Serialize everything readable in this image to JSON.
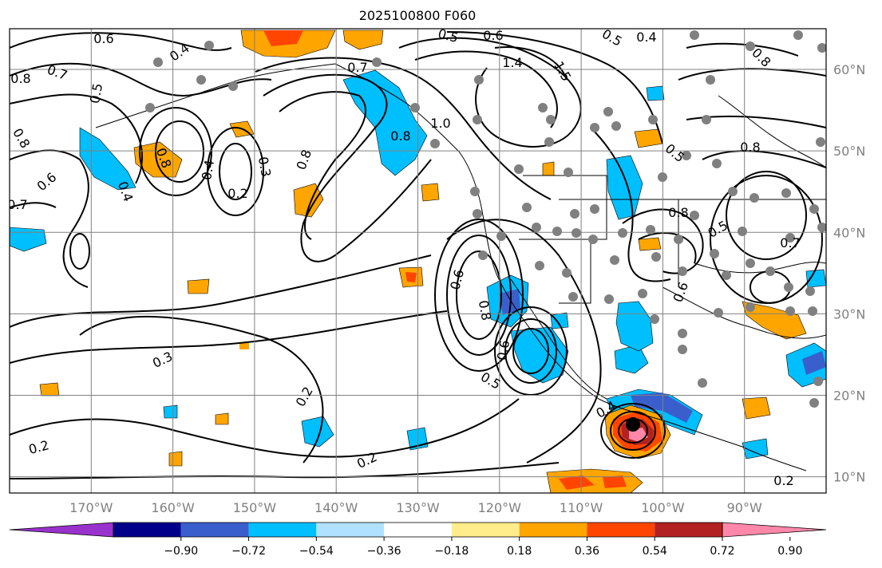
{
  "title": "2025100800 F060",
  "map": {
    "lon_range": [
      -180,
      -80
    ],
    "lat_range": [
      8,
      65
    ],
    "lon_ticks": [
      {
        "value": -170,
        "label": "170°W"
      },
      {
        "value": -160,
        "label": "160°W"
      },
      {
        "value": -150,
        "label": "150°W"
      },
      {
        "value": -140,
        "label": "140°W"
      },
      {
        "value": -130,
        "label": "130°W"
      },
      {
        "value": -120,
        "label": "120°W"
      },
      {
        "value": -110,
        "label": "110°W"
      },
      {
        "value": -100,
        "label": "100°W"
      },
      {
        "value": -90,
        "label": "90°W"
      }
    ],
    "lat_ticks": [
      {
        "value": 60,
        "label": "60°N"
      },
      {
        "value": 50,
        "label": "50°N"
      },
      {
        "value": 40,
        "label": "40°N"
      },
      {
        "value": 30,
        "label": "30°N"
      },
      {
        "value": 20,
        "label": "20°N"
      },
      {
        "value": 10,
        "label": "10°N"
      }
    ],
    "contour_labels": [
      "0.6",
      "0.4",
      "0.8",
      "0.7",
      "0.5",
      "0.5",
      "0.6",
      "1.4",
      "1.5",
      "0.5",
      "0.4",
      "0.8",
      "0.7",
      "0.6",
      "0.8",
      "0.4",
      "0.2",
      "0.3",
      "0.8",
      "1.0",
      "0.8",
      "0.4",
      "0.6",
      "0.8",
      "0.5",
      "0.8",
      "0.7",
      "0.3",
      "0.6",
      "0.8",
      "0.6",
      "0.5",
      "0.2",
      "0.4",
      "0.2",
      "0.2",
      "0.2",
      "0.7",
      "0.8",
      "0.5"
    ],
    "storm_marker": {
      "lon": -103.5,
      "lat": 16.5
    }
  },
  "colorbar": {
    "colors": [
      "#9932cc",
      "#00008b",
      "#3a5fcd",
      "#00bfff",
      "#b0e2ff",
      "#ffffff",
      "#ffec8b",
      "#ffa500",
      "#ff4500",
      "#b22222",
      "#ff88aa"
    ],
    "boundaries": [
      -1.08,
      -0.9,
      -0.72,
      -0.54,
      -0.36,
      -0.18,
      0.18,
      0.36,
      0.54,
      0.72,
      0.9,
      1.08
    ],
    "tick_labels": [
      "−0.90",
      "−0.72",
      "−0.54",
      "−0.36",
      "−0.18",
      "0.18",
      "0.36",
      "0.54",
      "0.72",
      "0.90"
    ]
  }
}
